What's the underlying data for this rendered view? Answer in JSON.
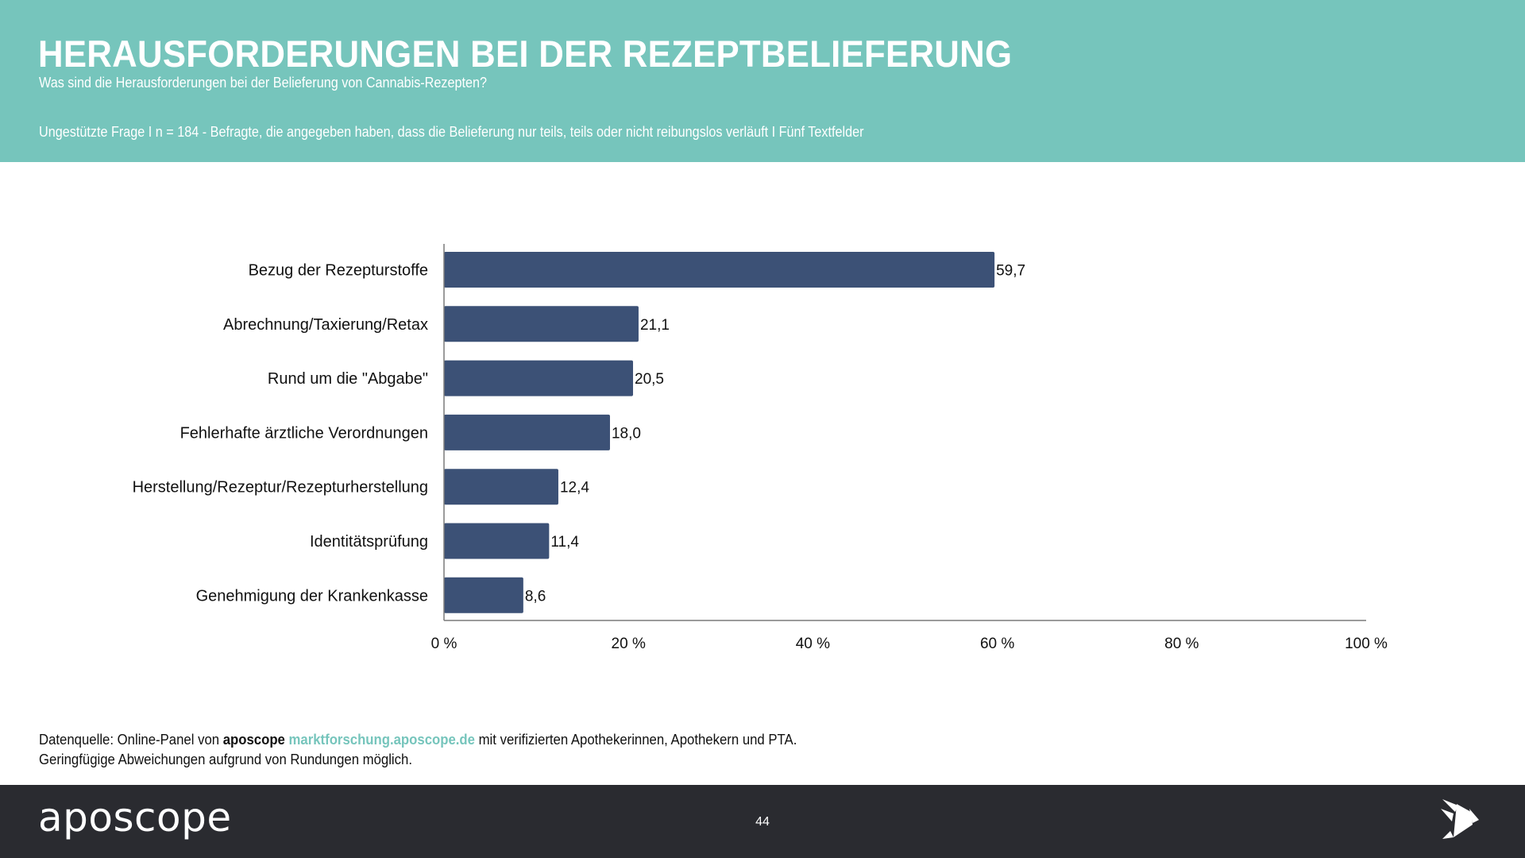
{
  "header": {
    "title": "HERAUSFORDERUNGEN BEI DER REZEPTBELIEFERUNG",
    "subtitle": "Was sind die Herausforderungen bei der Belieferung von Cannabis-Rezepten?",
    "question_info": "Ungestützte Frage I n = 184 - Befragte, die angegeben haben, dass die Belieferung nur teils, teils oder nicht reibungslos verläuft I Fünf Textfelder"
  },
  "colors": {
    "header_bg": "#76C5BC",
    "bar": "#3C5176",
    "footer_bg": "#2A2B30",
    "link": "#76C5BC"
  },
  "chart_data": {
    "type": "bar",
    "orientation": "horizontal",
    "title": "HERAUSFORDERUNGEN BEI DER REZEPTBELIEFERUNG",
    "xlabel": "",
    "ylabel": "",
    "categories": [
      "Bezug der Rezepturstoffe",
      "Abrechnung/Taxierung/Retax",
      "Rund um die \"Abgabe\"",
      "Fehlerhafte ärztliche Verordnungen",
      "Herstellung/Rezeptur/Rezepturherstellung",
      "Identitätsprüfung",
      "Genehmigung der Krankenkasse"
    ],
    "values": [
      59.7,
      21.1,
      20.5,
      18.0,
      12.4,
      11.4,
      8.6
    ],
    "value_labels": [
      "59,7",
      "21,1",
      "20,5",
      "18,0",
      "12,4",
      "11,4",
      "8,6"
    ],
    "xlim": [
      0,
      100
    ],
    "x_ticks": [
      0,
      20,
      40,
      60,
      80,
      100
    ],
    "x_tick_labels": [
      "0 %",
      "20 %",
      "40 %",
      "60 %",
      "80 %",
      "100 %"
    ],
    "grid": false,
    "legend": "none"
  },
  "footer_note": {
    "prefix": "Datenquelle: Online-Panel von ",
    "brand": "aposcope",
    "link": "marktforschung.aposcope.de",
    "suffix": " mit verifizierten Apothekerinnen, Apothekern und PTA.",
    "line2": "Geringfügige Abweichungen aufgrund von Rundungen möglich."
  },
  "footer": {
    "logo_text": "aposcope",
    "page_number": "44",
    "logo_icon": "origami-bird-icon"
  }
}
